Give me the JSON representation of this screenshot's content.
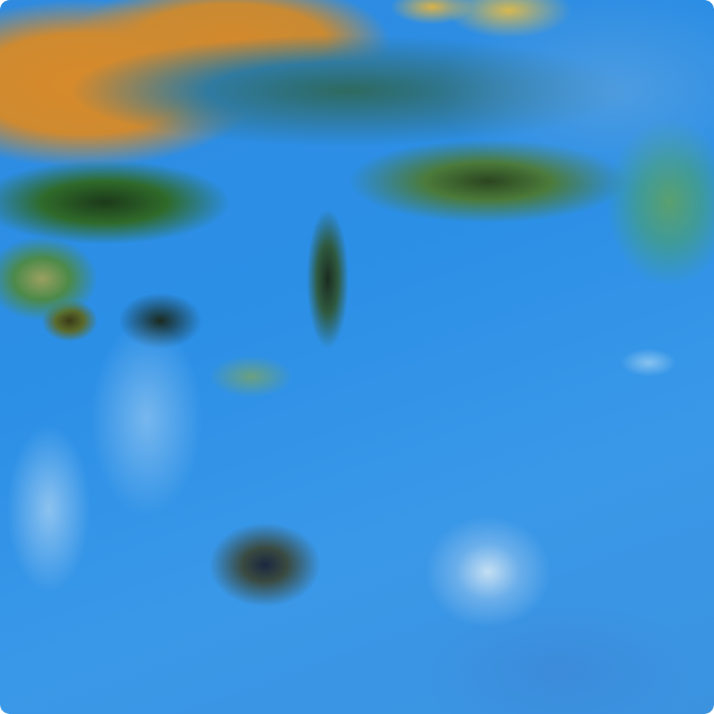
{
  "image": {
    "subject": "satellite-imagery",
    "colors": {
      "ocean": "#2f8be0",
      "land": "#d78a2a",
      "vegetation": "#2f6a2a",
      "cloud": "#dcebf5"
    }
  }
}
